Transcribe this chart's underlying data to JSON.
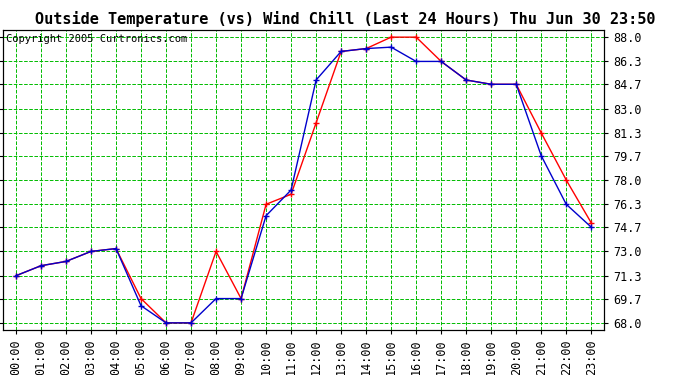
{
  "title": "Outside Temperature (vs) Wind Chill (Last 24 Hours) Thu Jun 30 23:50",
  "copyright": "Copyright 2005 Curtronics.com",
  "background_color": "#ffffff",
  "plot_bg_color": "#ffffff",
  "grid_color": "#00bb00",
  "x_labels": [
    "00:00",
    "01:00",
    "02:00",
    "03:00",
    "04:00",
    "05:00",
    "06:00",
    "07:00",
    "08:00",
    "09:00",
    "10:00",
    "11:00",
    "12:00",
    "13:00",
    "14:00",
    "15:00",
    "16:00",
    "17:00",
    "18:00",
    "19:00",
    "20:00",
    "21:00",
    "22:00",
    "23:00"
  ],
  "y_ticks": [
    68.0,
    69.7,
    71.3,
    73.0,
    74.7,
    76.3,
    78.0,
    79.7,
    81.3,
    83.0,
    84.7,
    86.3,
    88.0
  ],
  "outside_temp": [
    71.3,
    72.0,
    72.3,
    73.0,
    73.2,
    69.7,
    68.0,
    68.0,
    73.0,
    69.7,
    76.3,
    77.0,
    82.0,
    87.0,
    87.2,
    88.0,
    88.0,
    86.3,
    85.0,
    84.7,
    84.7,
    81.3,
    78.0,
    75.0
  ],
  "wind_chill": [
    71.3,
    72.0,
    72.3,
    73.0,
    73.2,
    69.2,
    68.0,
    68.0,
    69.7,
    69.7,
    75.5,
    77.3,
    85.0,
    87.0,
    87.2,
    87.3,
    86.3,
    86.3,
    85.0,
    84.7,
    84.7,
    79.7,
    76.3,
    74.7
  ],
  "temp_color": "#ff0000",
  "wind_color": "#0000cc",
  "ylim_min": 67.5,
  "ylim_max": 88.5,
  "title_fontsize": 11,
  "tick_fontsize": 8.5,
  "copyright_fontsize": 7.5
}
